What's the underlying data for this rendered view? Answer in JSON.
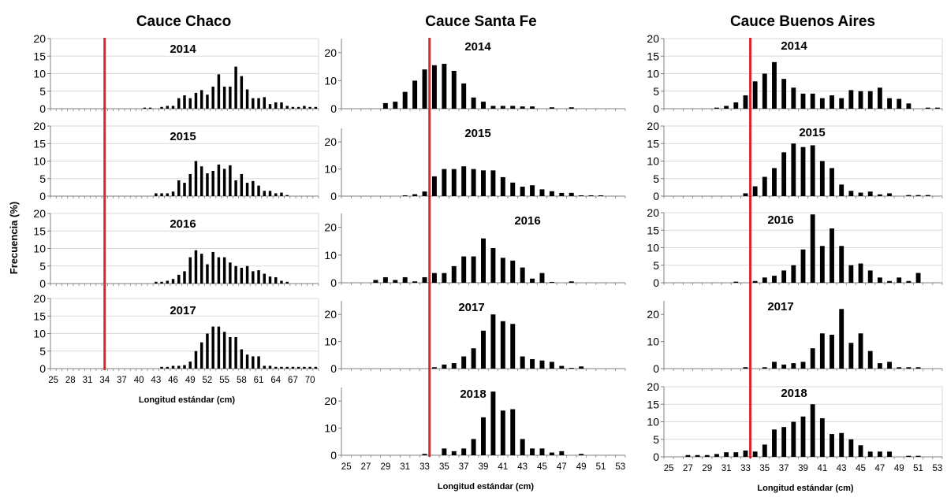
{
  "figure": {
    "ylabel": "Frecuencia (%)",
    "colors": {
      "bar": "#000000",
      "marker": "#d9282d",
      "grid": "#d9d9d9",
      "axis": "#808080"
    }
  },
  "chart_data": [
    {
      "type": "bar",
      "column": "Cauce Chaco",
      "panel": "2014",
      "x_range": [
        25,
        71
      ],
      "ylim": [
        0,
        20
      ],
      "yticks": [
        0,
        5,
        10,
        15,
        20
      ],
      "marker_x": 34,
      "grid": "horizontal",
      "x": [
        25,
        26,
        27,
        28,
        29,
        30,
        31,
        32,
        33,
        34,
        35,
        36,
        37,
        38,
        39,
        40,
        41,
        42,
        43,
        44,
        45,
        46,
        47,
        48,
        49,
        50,
        51,
        52,
        53,
        54,
        55,
        56,
        57,
        58,
        59,
        60,
        61,
        62,
        63,
        64,
        65,
        66,
        67,
        68,
        69,
        70,
        71
      ],
      "values": [
        0,
        0,
        0,
        0,
        0,
        0,
        0,
        0,
        0,
        0.3,
        0,
        0,
        0,
        0,
        0,
        0,
        0.3,
        0.3,
        0,
        0.5,
        0.8,
        0.8,
        3,
        3.8,
        3,
        4.5,
        5.3,
        4,
        6.3,
        9.8,
        6.3,
        6.3,
        12,
        9.3,
        5.5,
        3,
        3,
        3.3,
        1.3,
        1.8,
        1.8,
        0.8,
        0.5,
        0.5,
        0.8,
        0.5,
        0.5
      ]
    },
    {
      "type": "bar",
      "column": "Cauce Chaco",
      "panel": "2015",
      "x_range": [
        25,
        71
      ],
      "ylim": [
        0,
        20
      ],
      "yticks": [
        0,
        5,
        10,
        15,
        20
      ],
      "marker_x": 34,
      "grid": "horizontal",
      "x": [
        25,
        26,
        27,
        28,
        29,
        30,
        31,
        32,
        33,
        34,
        35,
        36,
        37,
        38,
        39,
        40,
        41,
        42,
        43,
        44,
        45,
        46,
        47,
        48,
        49,
        50,
        51,
        52,
        53,
        54,
        55,
        56,
        57,
        58,
        59,
        60,
        61,
        62,
        63,
        64,
        65,
        66,
        67,
        68,
        69,
        70,
        71
      ],
      "values": [
        0,
        0,
        0,
        0,
        0,
        0,
        0,
        0,
        0,
        0,
        0,
        0,
        0,
        0,
        0,
        0,
        0,
        0,
        0.8,
        0.8,
        0.8,
        1.3,
        4.5,
        3.8,
        6.3,
        10,
        8.5,
        6.5,
        7.2,
        9,
        7.8,
        8.8,
        4.5,
        6.3,
        3.8,
        4.3,
        3,
        1.5,
        1.5,
        0.8,
        1,
        0.3,
        0,
        0,
        0,
        0,
        0
      ]
    },
    {
      "type": "bar",
      "column": "Cauce Chaco",
      "panel": "2016",
      "x_range": [
        25,
        71
      ],
      "ylim": [
        0,
        20
      ],
      "yticks": [
        0,
        5,
        10,
        15,
        20
      ],
      "marker_x": 34,
      "grid": "horizontal",
      "x": [
        25,
        26,
        27,
        28,
        29,
        30,
        31,
        32,
        33,
        34,
        35,
        36,
        37,
        38,
        39,
        40,
        41,
        42,
        43,
        44,
        45,
        46,
        47,
        48,
        49,
        50,
        51,
        52,
        53,
        54,
        55,
        56,
        57,
        58,
        59,
        60,
        61,
        62,
        63,
        64,
        65,
        66,
        67,
        68,
        69,
        70,
        71
      ],
      "values": [
        0,
        0,
        0,
        0,
        0,
        0,
        0,
        0,
        0,
        0,
        0,
        0,
        0,
        0,
        0,
        0,
        0,
        0,
        0.5,
        0.5,
        0.8,
        1.3,
        2.5,
        3.5,
        7.5,
        9.5,
        8.5,
        5.5,
        9,
        7.5,
        7.5,
        6,
        5,
        4.5,
        5,
        3.5,
        3.8,
        2.8,
        2,
        1.8,
        0.8,
        0.5,
        0,
        0,
        0,
        0,
        0
      ]
    },
    {
      "type": "bar",
      "column": "Cauce Chaco",
      "panel": "2017",
      "x_range": [
        25,
        71
      ],
      "ylim": [
        0,
        20
      ],
      "yticks": [
        0,
        5,
        10,
        15,
        20
      ],
      "marker_x": 34,
      "grid": "horizontal",
      "xlabel": "Longitud estándar (cm)",
      "xticks": [
        25,
        28,
        31,
        34,
        37,
        40,
        43,
        46,
        49,
        52,
        55,
        58,
        61,
        64,
        67,
        70
      ],
      "x": [
        25,
        26,
        27,
        28,
        29,
        30,
        31,
        32,
        33,
        34,
        35,
        36,
        37,
        38,
        39,
        40,
        41,
        42,
        43,
        44,
        45,
        46,
        47,
        48,
        49,
        50,
        51,
        52,
        53,
        54,
        55,
        56,
        57,
        58,
        59,
        60,
        61,
        62,
        63,
        64,
        65,
        66,
        67,
        68,
        69,
        70,
        71
      ],
      "values": [
        0,
        0,
        0,
        0,
        0,
        0,
        0,
        0,
        0,
        0,
        0,
        0,
        0,
        0,
        0,
        0,
        0,
        0,
        0,
        0.5,
        0.5,
        0.8,
        0.8,
        1,
        2,
        5,
        7.5,
        10,
        12,
        12,
        10.5,
        9,
        9,
        5.5,
        4,
        3.5,
        3.5,
        0.8,
        0.8,
        0.5,
        0.5,
        0.5,
        0.5,
        0.5,
        0.5,
        0.5,
        0.5
      ]
    },
    {
      "type": "bar",
      "column": "Cauce Santa Fe",
      "panel": "2014",
      "x_range": [
        25,
        53
      ],
      "ylim": [
        0,
        25
      ],
      "yticks": [
        0,
        10,
        20
      ],
      "marker_x": 33.5,
      "grid": "none",
      "x": [
        25,
        26,
        27,
        28,
        29,
        30,
        31,
        32,
        33,
        34,
        35,
        36,
        37,
        38,
        39,
        40,
        41,
        42,
        43,
        44,
        45,
        46,
        47,
        48,
        49,
        50,
        51,
        52,
        53
      ],
      "values": [
        0,
        0,
        0,
        0,
        2,
        2.5,
        6,
        10,
        14,
        15.5,
        16,
        13.5,
        9,
        4,
        2.5,
        1,
        1,
        1,
        0.8,
        0.8,
        0,
        0.5,
        0,
        0.5,
        0,
        0,
        0,
        0,
        0
      ]
    },
    {
      "type": "bar",
      "column": "Cauce Santa Fe",
      "panel": "2015",
      "x_range": [
        25,
        53
      ],
      "ylim": [
        0,
        25
      ],
      "yticks": [
        0,
        10,
        20
      ],
      "marker_x": 33.5,
      "grid": "none",
      "x": [
        25,
        26,
        27,
        28,
        29,
        30,
        31,
        32,
        33,
        34,
        35,
        36,
        37,
        38,
        39,
        40,
        41,
        42,
        43,
        44,
        45,
        46,
        47,
        48,
        49,
        50,
        51,
        52,
        53
      ],
      "values": [
        0,
        0,
        0,
        0,
        0,
        0,
        0.3,
        0.7,
        1.7,
        7.3,
        10,
        10,
        11,
        10,
        9.5,
        9.5,
        7,
        5,
        3.5,
        4,
        2.5,
        1.8,
        1.2,
        1.2,
        0.3,
        0.3,
        0.3,
        0,
        0
      ]
    },
    {
      "type": "bar",
      "column": "Cauce Santa Fe",
      "panel": "2016",
      "x_range": [
        25,
        53
      ],
      "ylim": [
        0,
        25
      ],
      "yticks": [
        0,
        10,
        20
      ],
      "marker_x": 33.5,
      "grid": "none",
      "x": [
        25,
        26,
        27,
        28,
        29,
        30,
        31,
        32,
        33,
        34,
        35,
        36,
        37,
        38,
        39,
        40,
        41,
        42,
        43,
        44,
        45,
        46,
        47,
        48,
        49,
        50,
        51,
        52,
        53
      ],
      "values": [
        0,
        0,
        0,
        1,
        2,
        1,
        2,
        0.5,
        2,
        3.5,
        3.5,
        6,
        9.5,
        9.5,
        16,
        12.5,
        9,
        8,
        5.5,
        1.5,
        3.5,
        0.3,
        0,
        0.5,
        0,
        0,
        0,
        0,
        0
      ]
    },
    {
      "type": "bar",
      "column": "Cauce Santa Fe",
      "panel": "2017",
      "x_range": [
        25,
        53
      ],
      "ylim": [
        0,
        25
      ],
      "yticks": [
        0,
        10,
        20
      ],
      "marker_x": 33.5,
      "grid": "none",
      "x": [
        25,
        26,
        27,
        28,
        29,
        30,
        31,
        32,
        33,
        34,
        35,
        36,
        37,
        38,
        39,
        40,
        41,
        42,
        43,
        44,
        45,
        46,
        47,
        48,
        49,
        50,
        51,
        52,
        53
      ],
      "values": [
        0,
        0,
        0,
        0,
        0,
        0,
        0,
        0,
        0,
        0.5,
        1.5,
        2,
        4.5,
        7.5,
        14,
        20,
        17.5,
        16.5,
        4.5,
        3.5,
        3,
        2.5,
        1,
        0.3,
        0.8,
        0,
        0,
        0,
        0
      ]
    },
    {
      "type": "bar",
      "column": "Cauce Santa Fe",
      "panel": "2018",
      "x_range": [
        25,
        53
      ],
      "ylim": [
        0,
        25
      ],
      "yticks": [
        0,
        10,
        20
      ],
      "marker_x": 33.5,
      "grid": "none",
      "xlabel": "Longitud estándar (cm)",
      "xticks": [
        25,
        27,
        29,
        31,
        33,
        35,
        37,
        39,
        41,
        43,
        45,
        47,
        49,
        51,
        53
      ],
      "x": [
        25,
        26,
        27,
        28,
        29,
        30,
        31,
        32,
        33,
        34,
        35,
        36,
        37,
        38,
        39,
        40,
        41,
        42,
        43,
        44,
        45,
        46,
        47,
        48,
        49,
        50,
        51,
        52,
        53
      ],
      "values": [
        0,
        0,
        0,
        0,
        0,
        0,
        0,
        0,
        0.5,
        0,
        2.5,
        1.5,
        2.5,
        6,
        14,
        23.5,
        16.5,
        17,
        6,
        2.5,
        2.5,
        1,
        1.5,
        0,
        0.5,
        0,
        0,
        0,
        0
      ]
    },
    {
      "type": "bar",
      "column": "Cauce Buenos Aires",
      "panel": "2014",
      "x_range": [
        25,
        53
      ],
      "ylim": [
        0,
        20
      ],
      "yticks": [
        0,
        5,
        10,
        15,
        20
      ],
      "marker_x": 33.5,
      "grid": "horizontal",
      "x": [
        25,
        26,
        27,
        28,
        29,
        30,
        31,
        32,
        33,
        34,
        35,
        36,
        37,
        38,
        39,
        40,
        41,
        42,
        43,
        44,
        45,
        46,
        47,
        48,
        49,
        50,
        51,
        52,
        53
      ],
      "values": [
        0,
        0,
        0,
        0,
        0,
        0.3,
        0.8,
        1.8,
        3.8,
        7.8,
        10,
        13.3,
        8.5,
        6,
        4.3,
        4.3,
        3,
        3.8,
        3,
        5.3,
        5,
        5,
        6,
        3,
        2.8,
        1.5,
        0,
        0.3,
        0.3
      ]
    },
    {
      "type": "bar",
      "column": "Cauce Buenos Aires",
      "panel": "2015",
      "x_range": [
        25,
        53
      ],
      "ylim": [
        0,
        20
      ],
      "yticks": [
        0,
        5,
        10,
        15,
        20
      ],
      "marker_x": 33.5,
      "grid": "horizontal",
      "x": [
        25,
        26,
        27,
        28,
        29,
        30,
        31,
        32,
        33,
        34,
        35,
        36,
        37,
        38,
        39,
        40,
        41,
        42,
        43,
        44,
        45,
        46,
        47,
        48,
        49,
        50,
        51,
        52,
        53
      ],
      "values": [
        0,
        0,
        0,
        0,
        0,
        0,
        0,
        0,
        0.8,
        2.8,
        5.5,
        8,
        12.5,
        15,
        14,
        14.5,
        10,
        8,
        3.3,
        1.5,
        1,
        1.3,
        0.5,
        0.8,
        0,
        0.3,
        0.3,
        0.3,
        0
      ]
    },
    {
      "type": "bar",
      "column": "Cauce Buenos Aires",
      "panel": "2016",
      "x_range": [
        25,
        53
      ],
      "ylim": [
        0,
        20
      ],
      "yticks": [
        0,
        5,
        10,
        15,
        20
      ],
      "marker_x": 33.5,
      "grid": "horizontal",
      "x": [
        25,
        26,
        27,
        28,
        29,
        30,
        31,
        32,
        33,
        34,
        35,
        36,
        37,
        38,
        39,
        40,
        41,
        42,
        43,
        44,
        45,
        46,
        47,
        48,
        49,
        50,
        51,
        52,
        53
      ],
      "values": [
        0,
        0,
        0,
        0,
        0,
        0,
        0,
        0.3,
        0,
        0.5,
        1.5,
        2,
        3.5,
        5,
        9.5,
        19.5,
        10.5,
        15.5,
        10.5,
        5,
        5.5,
        3.5,
        1.5,
        0.5,
        1.5,
        0.5,
        2.8,
        0,
        0
      ]
    },
    {
      "type": "bar",
      "column": "Cauce Buenos Aires",
      "panel": "2017",
      "x_range": [
        25,
        53
      ],
      "ylim": [
        0,
        25
      ],
      "yticks": [
        0,
        10,
        20
      ],
      "marker_x": 33.5,
      "grid": "none",
      "x": [
        25,
        26,
        27,
        28,
        29,
        30,
        31,
        32,
        33,
        34,
        35,
        36,
        37,
        38,
        39,
        40,
        41,
        42,
        43,
        44,
        45,
        46,
        47,
        48,
        49,
        50,
        51,
        52,
        53
      ],
      "values": [
        0,
        0,
        0,
        0,
        0,
        0,
        0,
        0,
        0.5,
        0,
        0.5,
        2.5,
        1.5,
        2,
        2.5,
        7.5,
        13,
        12.5,
        22,
        9.5,
        13,
        6.5,
        2,
        2.5,
        0.5,
        0.5,
        0.5,
        0,
        0
      ]
    },
    {
      "type": "bar",
      "column": "Cauce Buenos Aires",
      "panel": "2018",
      "x_range": [
        25,
        53
      ],
      "ylim": [
        0,
        20
      ],
      "yticks": [
        0,
        5,
        10,
        15,
        20
      ],
      "marker_x": 33.5,
      "grid": "horizontal",
      "xlabel": "Longitud estándar (cm)",
      "xticks": [
        25,
        27,
        29,
        31,
        33,
        35,
        37,
        39,
        41,
        43,
        45,
        47,
        49,
        51,
        53
      ],
      "x": [
        25,
        26,
        27,
        28,
        29,
        30,
        31,
        32,
        33,
        34,
        35,
        36,
        37,
        38,
        39,
        40,
        41,
        42,
        43,
        44,
        45,
        46,
        47,
        48,
        49,
        50,
        51,
        52,
        53
      ],
      "values": [
        0,
        0,
        0.5,
        0.5,
        0.5,
        0.8,
        1.3,
        1.3,
        1.8,
        1.5,
        3.5,
        7.8,
        8.5,
        10,
        11.5,
        15,
        11,
        6.5,
        6.8,
        5,
        3.3,
        1.5,
        1.5,
        1.5,
        0,
        0.3,
        0.3,
        0,
        0
      ]
    }
  ]
}
